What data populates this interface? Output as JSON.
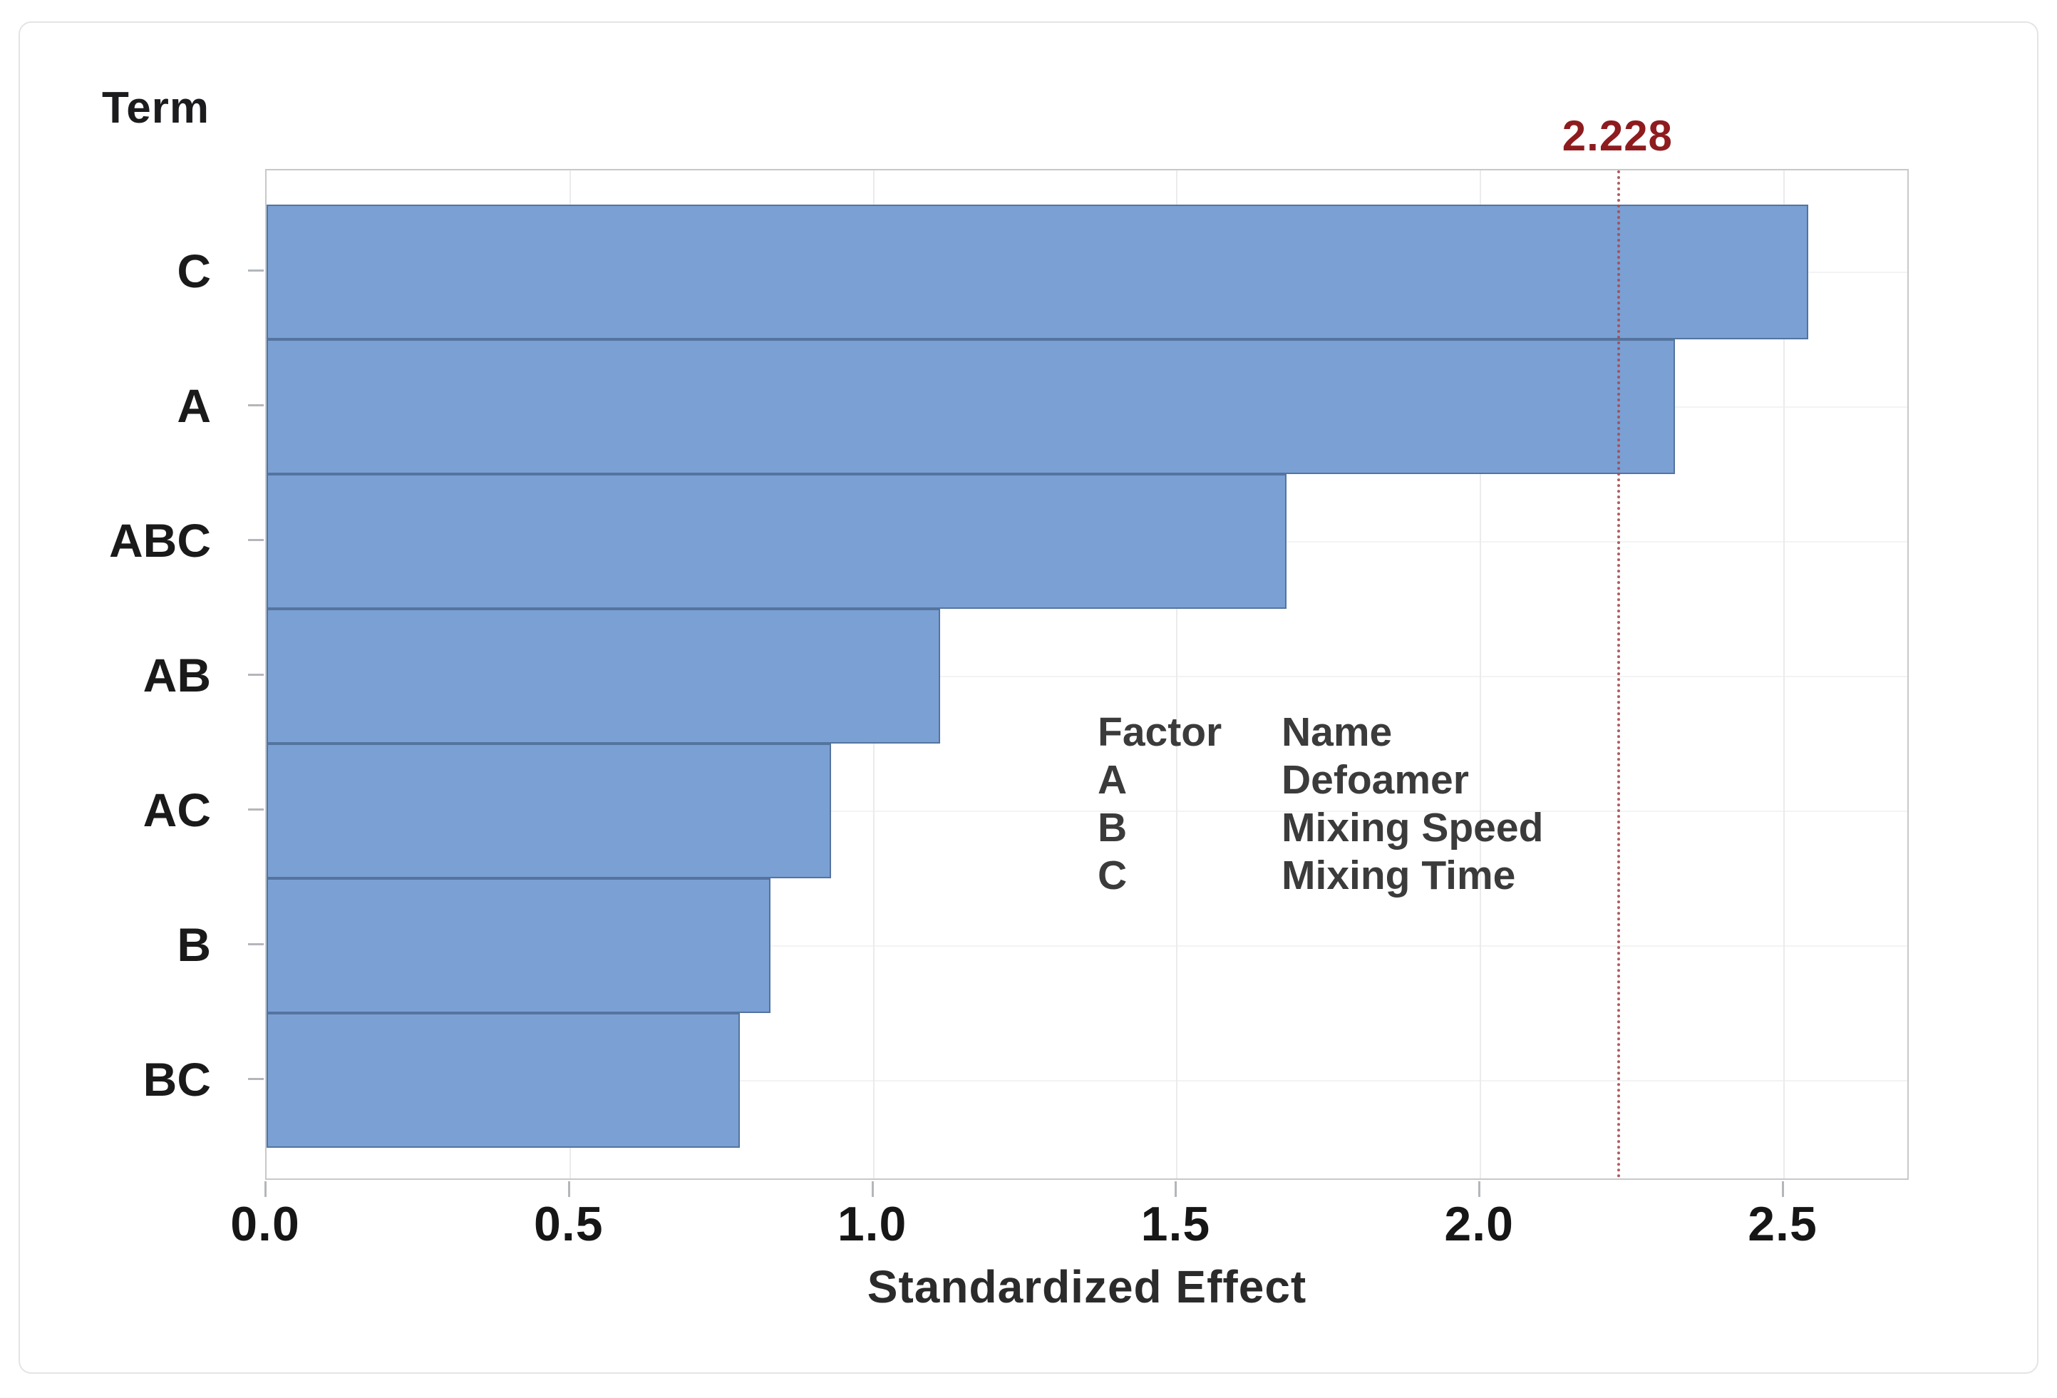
{
  "chart_data": {
    "type": "bar",
    "orientation": "horizontal",
    "y_axis_title": "Term",
    "xlabel": "Standardized Effect",
    "categories": [
      "C",
      "A",
      "ABC",
      "AB",
      "AC",
      "B",
      "BC"
    ],
    "values": [
      2.54,
      2.32,
      1.68,
      1.11,
      0.93,
      0.83,
      0.78
    ],
    "x_ticks": [
      "0.0",
      "0.5",
      "1.0",
      "1.5",
      "2.0",
      "2.5"
    ],
    "x_tick_values": [
      0,
      0.5,
      1.0,
      1.5,
      2.0,
      2.5
    ],
    "xlim": [
      0,
      2.71
    ],
    "grid": true,
    "reference_line": {
      "value": 2.228,
      "label": "2.228"
    },
    "legend": {
      "position": "center-right",
      "headers": [
        "Factor",
        "Name"
      ],
      "rows": [
        [
          "A",
          "Defoamer"
        ],
        [
          "B",
          "Mixing Speed"
        ],
        [
          "C",
          "Mixing Time"
        ]
      ]
    }
  },
  "colors": {
    "bar_fill": "#7aa0d4",
    "bar_border": "#54749f",
    "reference_line": "#a84b50",
    "reference_label": "#8e1b1e",
    "axis_border": "#c6c9cc",
    "gridline": "#eaebec",
    "text": "#1a1a1a"
  }
}
